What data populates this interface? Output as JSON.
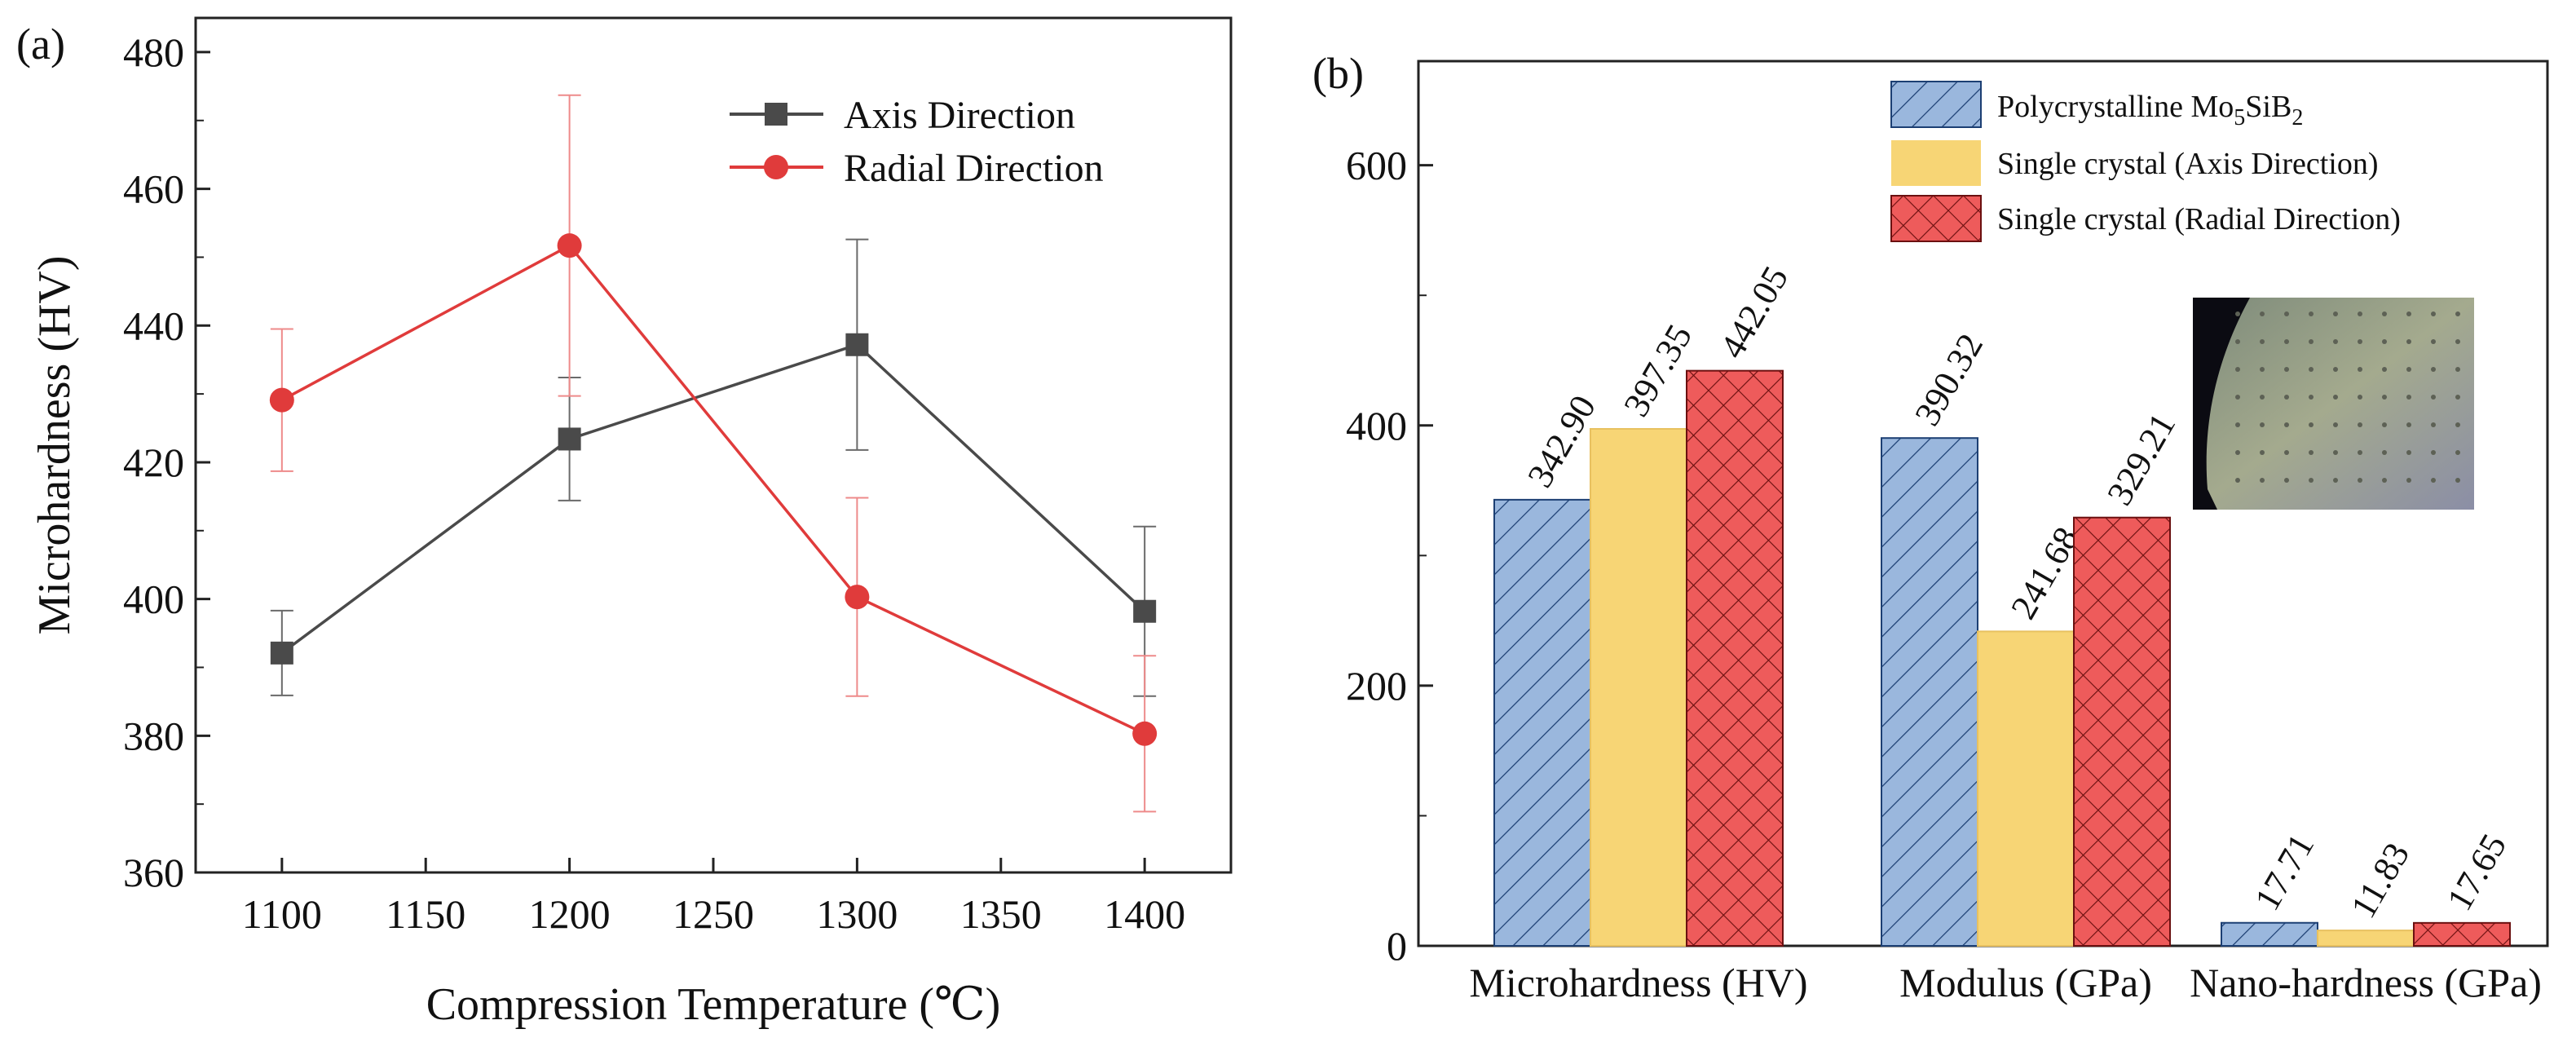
{
  "figure": {
    "panel_a_label": "(a)",
    "panel_b_label": "(b)"
  },
  "colors": {
    "axis": "#4a4a4a",
    "radial": "#e03b3b",
    "poly_fill": "#9ab7dd",
    "axis_bar_fill": "#f7d575",
    "radial_bar_fill": "#ee5b5b"
  },
  "chart_data": [
    {
      "type": "line",
      "title": "",
      "xlabel": "Compression Temperature (℃)",
      "ylabel": "Microhardness (HV)",
      "x": [
        1100,
        1200,
        1300,
        1400
      ],
      "xlim": [
        1070,
        1430
      ],
      "ylim": [
        360,
        485
      ],
      "xticks": [
        1100,
        1150,
        1200,
        1250,
        1300,
        1350,
        1400
      ],
      "yticks": [
        360,
        380,
        400,
        420,
        440,
        460,
        480
      ],
      "legend_position": "top-right",
      "series": [
        {
          "name": "Axis Direction",
          "marker": "square",
          "values": [
            392.1,
            423.4,
            437.2,
            398.2
          ],
          "error": [
            6.2,
            9.0,
            15.4,
            12.4
          ]
        },
        {
          "name": "Radial Direction",
          "marker": "circle",
          "values": [
            429.1,
            451.7,
            400.3,
            380.3
          ],
          "error": [
            10.4,
            22.0,
            14.5,
            11.4
          ]
        }
      ]
    },
    {
      "type": "bar",
      "title": "",
      "categories": [
        "Microhardness (HV)",
        "Modulus (GPa)",
        "Nano-hardness (GPa)"
      ],
      "ylim": [
        0,
        680
      ],
      "yticks": [
        0,
        200,
        400,
        600
      ],
      "legend_position": "top-right",
      "series": [
        {
          "name": "Polycrystalline Mo5SiB2",
          "values": [
            342.9,
            390.32,
            17.71
          ],
          "labels": [
            "342.90",
            "390.32",
            "17.71"
          ],
          "pattern": "diagonal"
        },
        {
          "name": "Single crystal (Axis Direction)",
          "values": [
            397.35,
            241.68,
            11.83
          ],
          "labels": [
            "397.35",
            "241.68",
            "11.83"
          ],
          "pattern": "solid"
        },
        {
          "name": "Single crystal (Radial Direction)",
          "values": [
            442.05,
            329.21,
            17.65
          ],
          "labels": [
            "442.05",
            "329.21",
            "17.65"
          ],
          "pattern": "crosshatch"
        }
      ],
      "legend_labels": {
        "poly_prefix": "Polycrystalline Mo",
        "poly_sub1": "5",
        "poly_mid": "SiB",
        "poly_sub2": "2",
        "axis": "Single crystal (Axis Direction)",
        "radial": "Single crystal (Radial Direction)"
      }
    }
  ]
}
